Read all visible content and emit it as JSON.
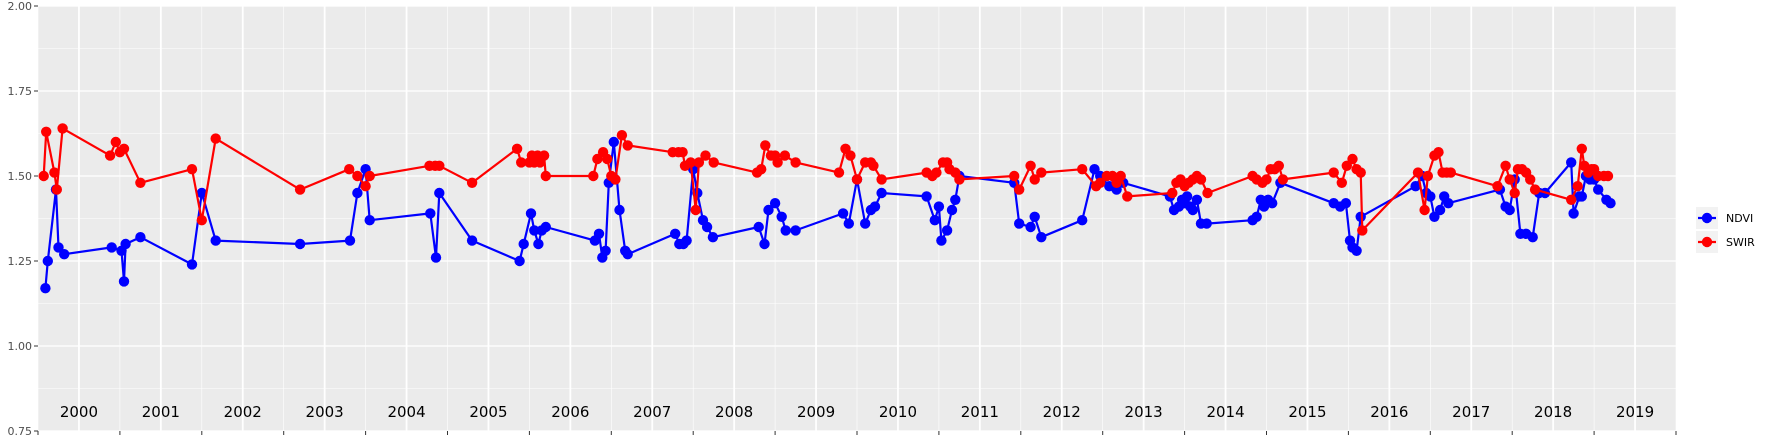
{
  "chart_data": {
    "type": "line",
    "title": "",
    "xlabel": "",
    "ylabel": "",
    "ylim": [
      0.75,
      2.0
    ],
    "yticks": [
      "0.75",
      "1.00",
      "1.25",
      "1.50",
      "1.75",
      "2.00"
    ],
    "xlim": [
      2000.0,
      2020.0
    ],
    "year_labels": [
      "2000",
      "2001",
      "2002",
      "2003",
      "2004",
      "2005",
      "2006",
      "2007",
      "2008",
      "2009",
      "2010",
      "2011",
      "2012",
      "2013",
      "2014",
      "2015",
      "2016",
      "2017",
      "2018",
      "2019"
    ],
    "grid": true,
    "legend_position": "right",
    "series": [
      {
        "name": "NDVI",
        "color": "#0000ff",
        "points": [
          [
            2000.09,
            1.17
          ],
          [
            2000.12,
            1.25
          ],
          [
            2000.22,
            1.46
          ],
          [
            2000.25,
            1.29
          ],
          [
            2000.32,
            1.27
          ],
          [
            2000.9,
            1.29
          ],
          [
            2001.02,
            1.28
          ],
          [
            2001.05,
            1.19
          ],
          [
            2001.07,
            1.3
          ],
          [
            2001.25,
            1.32
          ],
          [
            2001.88,
            1.24
          ],
          [
            2002.0,
            1.45
          ],
          [
            2002.17,
            1.31
          ],
          [
            2003.2,
            1.3
          ],
          [
            2003.81,
            1.31
          ],
          [
            2003.9,
            1.45
          ],
          [
            2004.0,
            1.52
          ],
          [
            2004.05,
            1.37
          ],
          [
            2004.79,
            1.39
          ],
          [
            2004.86,
            1.26
          ],
          [
            2004.9,
            1.45
          ],
          [
            2005.3,
            1.31
          ],
          [
            2005.88,
            1.25
          ],
          [
            2005.93,
            1.3
          ],
          [
            2006.02,
            1.39
          ],
          [
            2006.06,
            1.34
          ],
          [
            2006.11,
            1.3
          ],
          [
            2006.15,
            1.34
          ],
          [
            2006.2,
            1.35
          ],
          [
            2006.8,
            1.31
          ],
          [
            2006.85,
            1.33
          ],
          [
            2006.89,
            1.26
          ],
          [
            2006.93,
            1.28
          ],
          [
            2006.97,
            1.48
          ],
          [
            2007.03,
            1.6
          ],
          [
            2007.1,
            1.4
          ],
          [
            2007.17,
            1.28
          ],
          [
            2007.2,
            1.27
          ],
          [
            2007.78,
            1.33
          ],
          [
            2007.83,
            1.3
          ],
          [
            2007.88,
            1.3
          ],
          [
            2007.92,
            1.31
          ],
          [
            2008.0,
            1.52
          ],
          [
            2008.05,
            1.45
          ],
          [
            2008.12,
            1.37
          ],
          [
            2008.17,
            1.35
          ],
          [
            2008.24,
            1.32
          ],
          [
            2008.8,
            1.35
          ],
          [
            2008.87,
            1.3
          ],
          [
            2008.92,
            1.4
          ],
          [
            2009.0,
            1.42
          ],
          [
            2009.08,
            1.38
          ],
          [
            2009.13,
            1.34
          ],
          [
            2009.25,
            1.34
          ],
          [
            2009.83,
            1.39
          ],
          [
            2009.9,
            1.36
          ],
          [
            2010.0,
            1.49
          ],
          [
            2010.1,
            1.36
          ],
          [
            2010.17,
            1.4
          ],
          [
            2010.22,
            1.41
          ],
          [
            2010.3,
            1.45
          ],
          [
            2010.85,
            1.44
          ],
          [
            2010.95,
            1.37
          ],
          [
            2011.0,
            1.41
          ],
          [
            2011.03,
            1.31
          ],
          [
            2011.1,
            1.34
          ],
          [
            2011.16,
            1.4
          ],
          [
            2011.2,
            1.43
          ],
          [
            2011.25,
            1.5
          ],
          [
            2011.92,
            1.48
          ],
          [
            2011.98,
            1.36
          ],
          [
            2012.12,
            1.35
          ],
          [
            2012.17,
            1.38
          ],
          [
            2012.25,
            1.32
          ],
          [
            2012.75,
            1.37
          ],
          [
            2012.9,
            1.52
          ],
          [
            2012.97,
            1.5
          ],
          [
            2013.08,
            1.47
          ],
          [
            2013.17,
            1.46
          ],
          [
            2013.25,
            1.48
          ],
          [
            2013.82,
            1.44
          ],
          [
            2013.87,
            1.4
          ],
          [
            2013.93,
            1.41
          ],
          [
            2013.97,
            1.43
          ],
          [
            2014.0,
            1.42
          ],
          [
            2014.03,
            1.44
          ],
          [
            2014.07,
            1.41
          ],
          [
            2014.1,
            1.4
          ],
          [
            2014.15,
            1.43
          ],
          [
            2014.2,
            1.36
          ],
          [
            2014.27,
            1.36
          ],
          [
            2014.83,
            1.37
          ],
          [
            2014.88,
            1.38
          ],
          [
            2014.93,
            1.43
          ],
          [
            2014.97,
            1.41
          ],
          [
            2015.02,
            1.43
          ],
          [
            2015.07,
            1.42
          ],
          [
            2015.17,
            1.48
          ],
          [
            2015.82,
            1.42
          ],
          [
            2015.9,
            1.41
          ],
          [
            2015.97,
            1.42
          ],
          [
            2016.02,
            1.31
          ],
          [
            2016.05,
            1.29
          ],
          [
            2016.1,
            1.28
          ],
          [
            2016.15,
            1.38
          ],
          [
            2016.82,
            1.47
          ],
          [
            2016.9,
            1.5
          ],
          [
            2016.95,
            1.45
          ],
          [
            2017.0,
            1.44
          ],
          [
            2017.05,
            1.38
          ],
          [
            2017.12,
            1.4
          ],
          [
            2017.17,
            1.44
          ],
          [
            2017.22,
            1.42
          ],
          [
            2017.85,
            1.46
          ],
          [
            2017.92,
            1.41
          ],
          [
            2017.97,
            1.4
          ],
          [
            2018.03,
            1.49
          ],
          [
            2018.1,
            1.33
          ],
          [
            2018.17,
            1.33
          ],
          [
            2018.25,
            1.32
          ],
          [
            2018.33,
            1.45
          ],
          [
            2018.4,
            1.45
          ],
          [
            2018.72,
            1.54
          ],
          [
            2018.75,
            1.39
          ],
          [
            2018.82,
            1.44
          ],
          [
            2018.85,
            1.44
          ],
          [
            2018.9,
            1.5
          ],
          [
            2018.95,
            1.49
          ],
          [
            2019.0,
            1.49
          ],
          [
            2019.05,
            1.46
          ],
          [
            2019.15,
            1.43
          ],
          [
            2019.2,
            1.42
          ]
        ]
      },
      {
        "name": "SWIR",
        "color": "#ff0000",
        "points": [
          [
            2000.07,
            1.5
          ],
          [
            2000.1,
            1.63
          ],
          [
            2000.2,
            1.51
          ],
          [
            2000.23,
            1.46
          ],
          [
            2000.3,
            1.64
          ],
          [
            2000.88,
            1.56
          ],
          [
            2000.95,
            1.6
          ],
          [
            2001.0,
            1.57
          ],
          [
            2001.05,
            1.58
          ],
          [
            2001.25,
            1.48
          ],
          [
            2001.88,
            1.52
          ],
          [
            2002.0,
            1.37
          ],
          [
            2002.17,
            1.61
          ],
          [
            2003.2,
            1.46
          ],
          [
            2003.8,
            1.52
          ],
          [
            2003.9,
            1.5
          ],
          [
            2004.0,
            1.47
          ],
          [
            2004.05,
            1.5
          ],
          [
            2004.78,
            1.53
          ],
          [
            2004.85,
            1.53
          ],
          [
            2004.9,
            1.53
          ],
          [
            2005.3,
            1.48
          ],
          [
            2005.85,
            1.58
          ],
          [
            2005.9,
            1.54
          ],
          [
            2006.0,
            1.54
          ],
          [
            2006.03,
            1.56
          ],
          [
            2006.06,
            1.54
          ],
          [
            2006.1,
            1.56
          ],
          [
            2006.13,
            1.54
          ],
          [
            2006.18,
            1.56
          ],
          [
            2006.2,
            1.5
          ],
          [
            2006.78,
            1.5
          ],
          [
            2006.83,
            1.55
          ],
          [
            2006.9,
            1.57
          ],
          [
            2006.95,
            1.55
          ],
          [
            2007.0,
            1.5
          ],
          [
            2007.05,
            1.49
          ],
          [
            2007.13,
            1.62
          ],
          [
            2007.2,
            1.59
          ],
          [
            2007.75,
            1.57
          ],
          [
            2007.82,
            1.57
          ],
          [
            2007.87,
            1.57
          ],
          [
            2007.9,
            1.53
          ],
          [
            2007.97,
            1.54
          ],
          [
            2008.03,
            1.4
          ],
          [
            2008.07,
            1.54
          ],
          [
            2008.15,
            1.56
          ],
          [
            2008.25,
            1.54
          ],
          [
            2008.78,
            1.51
          ],
          [
            2008.83,
            1.52
          ],
          [
            2008.88,
            1.59
          ],
          [
            2008.95,
            1.56
          ],
          [
            2009.0,
            1.56
          ],
          [
            2009.03,
            1.54
          ],
          [
            2009.12,
            1.56
          ],
          [
            2009.25,
            1.54
          ],
          [
            2009.78,
            1.51
          ],
          [
            2009.86,
            1.58
          ],
          [
            2009.92,
            1.56
          ],
          [
            2010.0,
            1.49
          ],
          [
            2010.1,
            1.54
          ],
          [
            2010.17,
            1.54
          ],
          [
            2010.2,
            1.53
          ],
          [
            2010.3,
            1.49
          ],
          [
            2010.85,
            1.51
          ],
          [
            2010.92,
            1.5
          ],
          [
            2010.97,
            1.51
          ],
          [
            2011.05,
            1.54
          ],
          [
            2011.1,
            1.54
          ],
          [
            2011.13,
            1.52
          ],
          [
            2011.2,
            1.51
          ],
          [
            2011.25,
            1.49
          ],
          [
            2011.92,
            1.5
          ],
          [
            2011.98,
            1.46
          ],
          [
            2012.12,
            1.53
          ],
          [
            2012.17,
            1.49
          ],
          [
            2012.25,
            1.51
          ],
          [
            2012.75,
            1.52
          ],
          [
            2012.92,
            1.47
          ],
          [
            2012.97,
            1.48
          ],
          [
            2013.05,
            1.5
          ],
          [
            2013.12,
            1.5
          ],
          [
            2013.17,
            1.48
          ],
          [
            2013.22,
            1.5
          ],
          [
            2013.3,
            1.44
          ],
          [
            2013.85,
            1.45
          ],
          [
            2013.9,
            1.48
          ],
          [
            2013.95,
            1.49
          ],
          [
            2014.0,
            1.47
          ],
          [
            2014.05,
            1.48
          ],
          [
            2014.1,
            1.49
          ],
          [
            2014.15,
            1.5
          ],
          [
            2014.2,
            1.49
          ],
          [
            2014.28,
            1.45
          ],
          [
            2014.83,
            1.5
          ],
          [
            2014.88,
            1.49
          ],
          [
            2014.95,
            1.48
          ],
          [
            2015.0,
            1.49
          ],
          [
            2015.05,
            1.52
          ],
          [
            2015.1,
            1.52
          ],
          [
            2015.15,
            1.53
          ],
          [
            2015.2,
            1.49
          ],
          [
            2015.82,
            1.51
          ],
          [
            2015.92,
            1.48
          ],
          [
            2015.98,
            1.53
          ],
          [
            2016.05,
            1.55
          ],
          [
            2016.1,
            1.52
          ],
          [
            2016.15,
            1.51
          ],
          [
            2016.17,
            1.34
          ],
          [
            2016.85,
            1.51
          ],
          [
            2016.93,
            1.4
          ],
          [
            2016.97,
            1.5
          ],
          [
            2017.05,
            1.56
          ],
          [
            2017.1,
            1.57
          ],
          [
            2017.15,
            1.51
          ],
          [
            2017.2,
            1.51
          ],
          [
            2017.25,
            1.51
          ],
          [
            2017.82,
            1.47
          ],
          [
            2017.92,
            1.53
          ],
          [
            2017.97,
            1.49
          ],
          [
            2018.03,
            1.45
          ],
          [
            2018.07,
            1.52
          ],
          [
            2018.12,
            1.52
          ],
          [
            2018.17,
            1.51
          ],
          [
            2018.22,
            1.49
          ],
          [
            2018.28,
            1.46
          ],
          [
            2018.72,
            1.43
          ],
          [
            2018.8,
            1.47
          ],
          [
            2018.85,
            1.58
          ],
          [
            2018.88,
            1.53
          ],
          [
            2018.93,
            1.51
          ],
          [
            2018.97,
            1.52
          ],
          [
            2019.0,
            1.52
          ],
          [
            2019.05,
            1.5
          ],
          [
            2019.12,
            1.5
          ],
          [
            2019.17,
            1.5
          ]
        ]
      }
    ]
  }
}
